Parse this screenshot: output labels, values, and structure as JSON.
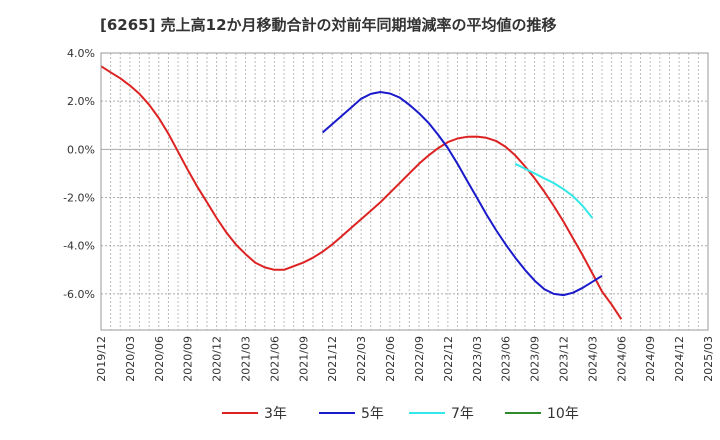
{
  "chart_data": {
    "type": "line",
    "title": "[6265]  売上高12か月移動合計の対前年同期増減率の平均値の推移",
    "xlabel": "",
    "ylabel": "",
    "x_ticks": [
      "2019/12",
      "2020/03",
      "2020/06",
      "2020/09",
      "2020/12",
      "2021/03",
      "2021/06",
      "2021/09",
      "2021/12",
      "2022/03",
      "2022/06",
      "2022/09",
      "2022/12",
      "2023/03",
      "2023/06",
      "2023/09",
      "2023/12",
      "2024/03",
      "2024/06",
      "2024/09",
      "2024/12",
      "2025/03"
    ],
    "y_ticks": [
      "4.0%",
      "2.0%",
      "0.0%",
      "-2.0%",
      "-4.0%",
      "-6.0%"
    ],
    "ylim": [
      -7.5,
      4.0
    ],
    "grid": true,
    "legend_position": "bottom",
    "series": [
      {
        "name": "3年",
        "color": "#dd2222",
        "points": [
          [
            "2019/12",
            3.45
          ],
          [
            "2020/01",
            3.2
          ],
          [
            "2020/02",
            2.95
          ],
          [
            "2020/03",
            2.65
          ],
          [
            "2020/04",
            2.3
          ],
          [
            "2020/05",
            1.85
          ],
          [
            "2020/06",
            1.3
          ],
          [
            "2020/07",
            0.65
          ],
          [
            "2020/08",
            -0.1
          ],
          [
            "2020/09",
            -0.85
          ],
          [
            "2020/10",
            -1.55
          ],
          [
            "2020/11",
            -2.2
          ],
          [
            "2020/12",
            -2.85
          ],
          [
            "2021/01",
            -3.45
          ],
          [
            "2021/02",
            -3.95
          ],
          [
            "2021/03",
            -4.35
          ],
          [
            "2021/04",
            -4.7
          ],
          [
            "2021/05",
            -4.9
          ],
          [
            "2021/06",
            -5.0
          ],
          [
            "2021/07",
            -5.0
          ],
          [
            "2021/08",
            -4.85
          ],
          [
            "2021/09",
            -4.7
          ],
          [
            "2021/10",
            -4.5
          ],
          [
            "2021/11",
            -4.25
          ],
          [
            "2021/12",
            -3.95
          ],
          [
            "2022/01",
            -3.6
          ],
          [
            "2022/02",
            -3.25
          ],
          [
            "2022/03",
            -2.9
          ],
          [
            "2022/04",
            -2.55
          ],
          [
            "2022/05",
            -2.2
          ],
          [
            "2022/06",
            -1.8
          ],
          [
            "2022/07",
            -1.4
          ],
          [
            "2022/08",
            -1.0
          ],
          [
            "2022/09",
            -0.6
          ],
          [
            "2022/10",
            -0.25
          ],
          [
            "2022/11",
            0.05
          ],
          [
            "2022/12",
            0.3
          ],
          [
            "2023/01",
            0.45
          ],
          [
            "2023/02",
            0.52
          ],
          [
            "2023/03",
            0.53
          ],
          [
            "2023/04",
            0.48
          ],
          [
            "2023/05",
            0.35
          ],
          [
            "2023/06",
            0.1
          ],
          [
            "2023/07",
            -0.25
          ],
          [
            "2023/08",
            -0.7
          ],
          [
            "2023/09",
            -1.2
          ],
          [
            "2023/10",
            -1.75
          ],
          [
            "2023/11",
            -2.35
          ],
          [
            "2023/12",
            -3.0
          ],
          [
            "2024/01",
            -3.7
          ],
          [
            "2024/02",
            -4.4
          ],
          [
            "2024/03",
            -5.15
          ],
          [
            "2024/04",
            -5.9
          ],
          [
            "2024/05",
            -6.45
          ],
          [
            "2024/06",
            -7.05
          ]
        ]
      },
      {
        "name": "5年",
        "color": "#1a1acc",
        "points": [
          [
            "2021/11",
            0.7
          ],
          [
            "2021/12",
            1.05
          ],
          [
            "2022/01",
            1.4
          ],
          [
            "2022/02",
            1.75
          ],
          [
            "2022/03",
            2.1
          ],
          [
            "2022/04",
            2.3
          ],
          [
            "2022/05",
            2.38
          ],
          [
            "2022/06",
            2.32
          ],
          [
            "2022/07",
            2.15
          ],
          [
            "2022/08",
            1.85
          ],
          [
            "2022/09",
            1.5
          ],
          [
            "2022/10",
            1.1
          ],
          [
            "2022/11",
            0.6
          ],
          [
            "2022/12",
            0.05
          ],
          [
            "2023/01",
            -0.6
          ],
          [
            "2023/02",
            -1.3
          ],
          [
            "2023/03",
            -2.0
          ],
          [
            "2023/04",
            -2.7
          ],
          [
            "2023/05",
            -3.35
          ],
          [
            "2023/06",
            -3.95
          ],
          [
            "2023/07",
            -4.5
          ],
          [
            "2023/08",
            -5.0
          ],
          [
            "2023/09",
            -5.45
          ],
          [
            "2023/10",
            -5.8
          ],
          [
            "2023/11",
            -6.0
          ],
          [
            "2023/12",
            -6.05
          ],
          [
            "2024/01",
            -5.95
          ],
          [
            "2024/02",
            -5.75
          ],
          [
            "2024/03",
            -5.5
          ],
          [
            "2024/04",
            -5.25
          ]
        ]
      },
      {
        "name": "7年",
        "color": "#33e8e8",
        "points": [
          [
            "2023/07",
            -0.6
          ],
          [
            "2023/08",
            -0.8
          ],
          [
            "2023/09",
            -1.0
          ],
          [
            "2023/10",
            -1.2
          ],
          [
            "2023/11",
            -1.4
          ],
          [
            "2023/12",
            -1.65
          ],
          [
            "2024/01",
            -1.95
          ],
          [
            "2024/02",
            -2.35
          ],
          [
            "2024/03",
            -2.85
          ]
        ]
      },
      {
        "name": "10年",
        "color": "#2e8b2e",
        "points": []
      }
    ]
  }
}
